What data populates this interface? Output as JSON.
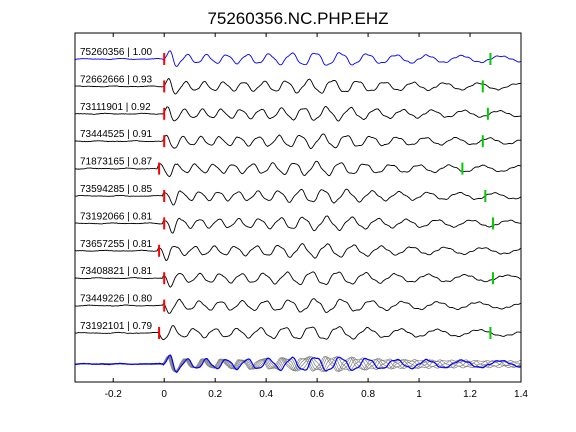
{
  "chart_data": {
    "type": "line",
    "title": "75260356.NC.PHP.EHZ",
    "xlabel": "",
    "ylabel": "",
    "xlim": [
      -0.35,
      1.4
    ],
    "xticks": [
      -0.2,
      0,
      0.2,
      0.4,
      0.6,
      0.8,
      1,
      1.2,
      1.4
    ],
    "xtick_labels": [
      "-0.2",
      "0",
      "0.2",
      "0.4",
      "0.6",
      "0.8",
      "1",
      "1.2",
      "1.4"
    ],
    "grid": false,
    "colors": {
      "reference_trace": "#0000ff",
      "trace": "#000000",
      "stack_gray": "#808080",
      "p_pick": "#ff0000",
      "s_pick": "#00cc00"
    },
    "series": [
      {
        "name": "75260356 | 1.00",
        "p_time": 0.0,
        "s_time": 1.28
      },
      {
        "name": "72662666 | 0.93",
        "p_time": 0.0,
        "s_time": 1.25
      },
      {
        "name": "73111901 | 0.92",
        "p_time": 0.0,
        "s_time": 1.27
      },
      {
        "name": "73444525 | 0.91",
        "p_time": 0.0,
        "s_time": 1.25
      },
      {
        "name": "71873165 | 0.87",
        "p_time": -0.02,
        "s_time": 1.17
      },
      {
        "name": "73594285 | 0.85",
        "p_time": 0.0,
        "s_time": 1.26
      },
      {
        "name": "73192066 | 0.81",
        "p_time": 0.0,
        "s_time": 1.29
      },
      {
        "name": "73657255 | 0.81",
        "p_time": -0.02,
        "s_time": null
      },
      {
        "name": "73408821 | 0.81",
        "p_time": 0.0,
        "s_time": 1.29
      },
      {
        "name": "73449226 | 0.80",
        "p_time": 0.0,
        "s_time": null
      },
      {
        "name": "73192101 | 0.79",
        "p_time": -0.02,
        "s_time": 1.28
      }
    ]
  }
}
